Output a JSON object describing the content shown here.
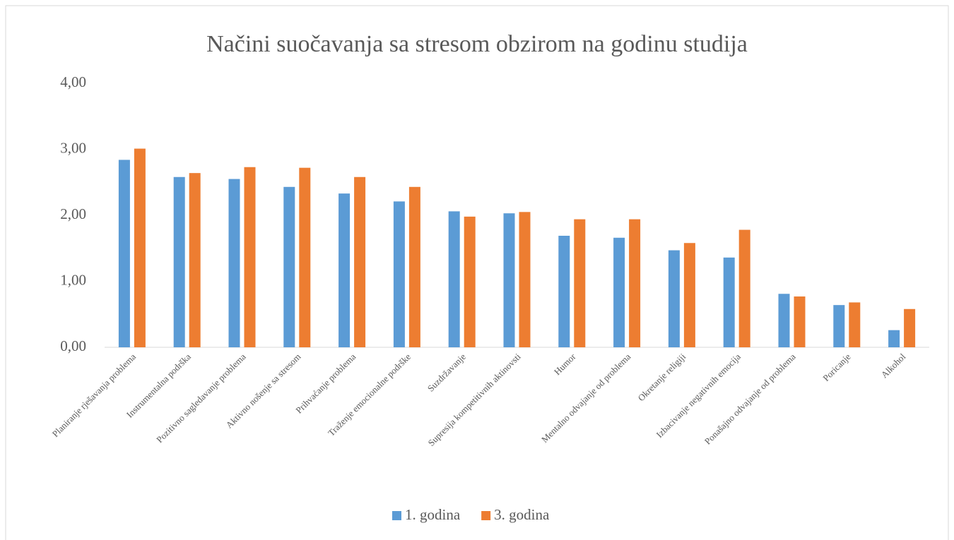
{
  "chart_data": {
    "type": "bar",
    "title": "Načini suočavanja sa stresom obzirom na godinu studija",
    "categories": [
      "Planiranje rješavanja problema",
      "Instrumentalna podrška",
      "Pozitivno sagledavanje problema",
      "Aktivno nošenje sa stresom",
      "Prihvaćanje problema",
      "Traženje emocionalne podrške",
      "Suzdržavanje",
      "Supresija kompetitivnih aktinovsti",
      "Humor",
      "Mentalno odvajanje od problema",
      "Okretanje religiji",
      "Izbacivanje negativnih emocija",
      "Ponašajno odvajanje od problema",
      "Poricanje",
      "Alkohol"
    ],
    "series": [
      {
        "name": "1. godina",
        "color": "#5b9bd5",
        "values": [
          2.84,
          2.58,
          2.55,
          2.43,
          2.33,
          2.21,
          2.06,
          2.03,
          1.69,
          1.66,
          1.47,
          1.36,
          0.81,
          0.64,
          0.26
        ]
      },
      {
        "name": "3. godina",
        "color": "#ed7d31",
        "values": [
          3.01,
          2.64,
          2.73,
          2.72,
          2.58,
          2.43,
          1.98,
          2.05,
          1.94,
          1.94,
          1.58,
          1.78,
          0.77,
          0.68,
          0.58
        ]
      }
    ],
    "ylim": [
      0,
      4
    ],
    "yticks": [
      {
        "value": 0,
        "label": "0,00"
      },
      {
        "value": 1,
        "label": "1,00"
      },
      {
        "value": 2,
        "label": "2,00"
      },
      {
        "value": 3,
        "label": "3,00"
      },
      {
        "value": 4,
        "label": "4,00"
      }
    ],
    "grid": false,
    "legend": "bottom"
  }
}
